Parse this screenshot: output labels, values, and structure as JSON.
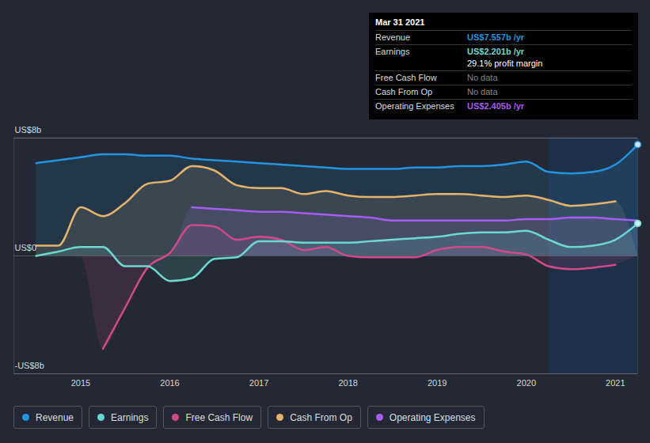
{
  "chart_data": {
    "type": "line",
    "x": [
      2014.5,
      2014.75,
      2015,
      2015.25,
      2015.5,
      2015.75,
      2016,
      2016.25,
      2016.5,
      2016.75,
      2017,
      2017.25,
      2017.5,
      2017.75,
      2018,
      2018.25,
      2018.5,
      2018.75,
      2019,
      2019.25,
      2019.5,
      2019.75,
      2020,
      2020.25,
      2020.5,
      2020.75,
      2021,
      2021.25
    ],
    "xlim": [
      2014.25,
      2021.25
    ],
    "xticks": [
      2015,
      2016,
      2017,
      2018,
      2019,
      2020,
      2021
    ],
    "ylim": [
      -8,
      8
    ],
    "yticks": [
      {
        "value": -8,
        "label": "-US$8b"
      },
      {
        "value": 0,
        "label": "US$0"
      },
      {
        "value": 8,
        "label": "US$8b"
      }
    ],
    "grid": true,
    "legend": "bottom",
    "shaded_x": [
      2020.25,
      2021.25
    ],
    "series": [
      {
        "name": "Revenue",
        "color": "#2394df",
        "marker": "circle",
        "values": [
          6.3,
          6.5,
          6.7,
          6.9,
          6.9,
          6.8,
          6.8,
          6.6,
          6.5,
          6.4,
          6.3,
          6.2,
          6.1,
          6.0,
          5.9,
          5.9,
          5.9,
          6.0,
          6.0,
          6.1,
          6.1,
          6.2,
          6.4,
          5.7,
          5.6,
          5.7,
          6.2,
          7.557
        ]
      },
      {
        "name": "Earnings",
        "color": "#6cd9cf",
        "marker": "circle",
        "values": [
          0,
          0.3,
          0.6,
          0.6,
          -0.7,
          -0.7,
          -1.7,
          -1.5,
          -0.2,
          -0.1,
          1.0,
          1.0,
          0.9,
          0.9,
          0.9,
          1.0,
          1.1,
          1.2,
          1.3,
          1.5,
          1.6,
          1.6,
          1.7,
          1.1,
          0.6,
          0.7,
          1.1,
          2.201
        ]
      },
      {
        "name": "Free Cash Flow",
        "color": "#d04a8a",
        "values": [
          null,
          null,
          null,
          -6.3,
          -3.5,
          -0.8,
          0.2,
          2.1,
          2.0,
          1.1,
          1.3,
          1.1,
          0.4,
          0.6,
          0.0,
          -0.1,
          -0.1,
          -0.1,
          0.4,
          0.6,
          0.6,
          0.3,
          0.1,
          -0.7,
          -0.9,
          -0.8,
          -0.6,
          null
        ]
      },
      {
        "name": "Cash From Op",
        "color": "#e6b36a",
        "values": [
          0.7,
          0.7,
          3.3,
          2.7,
          3.6,
          4.9,
          5.1,
          6.1,
          5.8,
          4.8,
          4.6,
          4.6,
          4.2,
          4.4,
          4.1,
          4.0,
          4.0,
          4.1,
          4.2,
          4.2,
          4.1,
          4.0,
          4.1,
          3.8,
          3.4,
          3.5,
          3.7,
          null
        ]
      },
      {
        "name": "Operating Expenses",
        "color": "#a55cf0",
        "values": [
          null,
          null,
          null,
          null,
          null,
          null,
          null,
          3.3,
          3.2,
          3.1,
          3.0,
          3.0,
          2.9,
          2.8,
          2.7,
          2.6,
          2.4,
          2.4,
          2.4,
          2.4,
          2.4,
          2.4,
          2.5,
          2.5,
          2.6,
          2.6,
          2.5,
          2.405
        ]
      }
    ],
    "annotation": {
      "title": "Mar 31 2021",
      "rows": [
        {
          "label": "Revenue",
          "value": "US$7.557b /yr",
          "color": "#2394df"
        },
        {
          "label": "Earnings",
          "value": "US$2.201b /yr",
          "color": "#6cd9cf",
          "note": "29.1% profit margin"
        },
        {
          "label": "Free Cash Flow",
          "value": "No data"
        },
        {
          "label": "Cash From Op",
          "value": "No data"
        },
        {
          "label": "Operating Expenses",
          "value": "US$2.405b /yr",
          "color": "#a55cf0"
        }
      ]
    }
  }
}
